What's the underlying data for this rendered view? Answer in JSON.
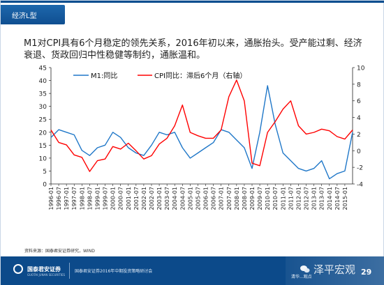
{
  "slide": {
    "section_tab": "经济L型",
    "headline": "M1对CPI具有6个月稳定的领先关系，2016年初以来，通胀抬头。受产能过剩、经济衰退、货政回归中性稳健等制约，通胀温和。",
    "source_note": "资料来源：国泰君安证券研究，WIND",
    "footer": {
      "logo_name": "国泰君安证券",
      "logo_sub": "GUOTAI JUNAN SECURITIES",
      "event_text": "国泰君安证券2016年中期投资策略研讨会",
      "watermark_text": "泽平宏观",
      "overlay_text": "清华...观点",
      "page_number": "29"
    },
    "colors": {
      "brand_blue": "#0c4a8a",
      "m1_line": "#1f77c8",
      "cpi_line": "#ff0000"
    }
  },
  "chart_data": {
    "type": "line",
    "title": "",
    "x_tick_labels": [
      "1996-01",
      "1996-07",
      "1997-01",
      "1997-07",
      "1998-01",
      "1998-07",
      "1999-01",
      "1999-07",
      "2000-01",
      "2000-07",
      "2001-01",
      "2001-07",
      "2002-01",
      "2002-07",
      "2003-01",
      "2003-07",
      "2004-01",
      "2004-07",
      "2005-01",
      "2005-07",
      "2006-01",
      "2006-07",
      "2007-01",
      "2007-07",
      "2008-01",
      "2008-07",
      "2009-01",
      "2009-07",
      "2010-01",
      "2010-07",
      "2011-01",
      "2011-07",
      "2012-01",
      "2012-07",
      "2013-01",
      "2013-07",
      "2014-01",
      "2014-07",
      "2015-01"
    ],
    "y_left": {
      "range": [
        0,
        45
      ],
      "ticks": [
        0,
        5,
        10,
        15,
        20,
        25,
        30,
        35,
        40,
        45
      ]
    },
    "y_right": {
      "range": [
        -4,
        10
      ],
      "ticks": [
        -4,
        -2,
        0,
        2,
        4,
        6,
        8,
        10
      ]
    },
    "legend_position": "top",
    "grid": false,
    "series": [
      {
        "name": "M1:同比",
        "axis": "left",
        "x": [
          "1996-01",
          "1996-07",
          "1997-01",
          "1997-07",
          "1998-01",
          "1998-07",
          "1999-01",
          "1999-07",
          "2000-01",
          "2000-07",
          "2001-01",
          "2001-07",
          "2002-01",
          "2002-07",
          "2003-01",
          "2003-07",
          "2004-01",
          "2004-07",
          "2005-01",
          "2005-07",
          "2006-01",
          "2006-07",
          "2007-01",
          "2007-07",
          "2008-01",
          "2008-07",
          "2009-01",
          "2009-07",
          "2010-01",
          "2010-07",
          "2011-01",
          "2011-07",
          "2012-01",
          "2012-07",
          "2013-01",
          "2013-07",
          "2014-01",
          "2014-07",
          "2015-01",
          "2015-07"
        ],
        "values": [
          18,
          21,
          20,
          19,
          13,
          11,
          14,
          15,
          20,
          18,
          14,
          12,
          11,
          15,
          20,
          19,
          20,
          14,
          10,
          12,
          14,
          16,
          21,
          20,
          17,
          14,
          6,
          20,
          38,
          23,
          12,
          9,
          6,
          5,
          6,
          9,
          2,
          4,
          5,
          20
        ]
      },
      {
        "name": "CPI同比：滞后6个月（右轴）",
        "axis": "right",
        "x": [
          "1996-01",
          "1996-07",
          "1997-01",
          "1997-07",
          "1998-01",
          "1998-07",
          "1999-01",
          "1999-07",
          "2000-01",
          "2000-07",
          "2001-01",
          "2001-07",
          "2002-01",
          "2002-07",
          "2003-01",
          "2003-07",
          "2004-01",
          "2004-07",
          "2005-01",
          "2005-07",
          "2006-01",
          "2006-07",
          "2007-01",
          "2007-07",
          "2008-01",
          "2008-07",
          "2009-01",
          "2009-07",
          "2010-01",
          "2010-07",
          "2011-01",
          "2011-07",
          "2012-01",
          "2012-07",
          "2013-01",
          "2013-07",
          "2014-01",
          "2014-07",
          "2015-01",
          "2015-07"
        ],
        "values": [
          2.5,
          1.0,
          0.7,
          -0.5,
          -0.8,
          -2.5,
          -1.2,
          -1.0,
          0.5,
          0.2,
          0.9,
          0.0,
          -1.0,
          -0.6,
          0.8,
          1.5,
          3.0,
          5.5,
          2.2,
          1.8,
          1.5,
          1.5,
          2.5,
          6.5,
          8.5,
          6.0,
          -1.5,
          -1.8,
          2.2,
          3.5,
          5.0,
          6.0,
          3.0,
          2.0,
          2.2,
          2.6,
          2.4,
          1.7,
          1.4,
          2.5
        ]
      }
    ]
  }
}
